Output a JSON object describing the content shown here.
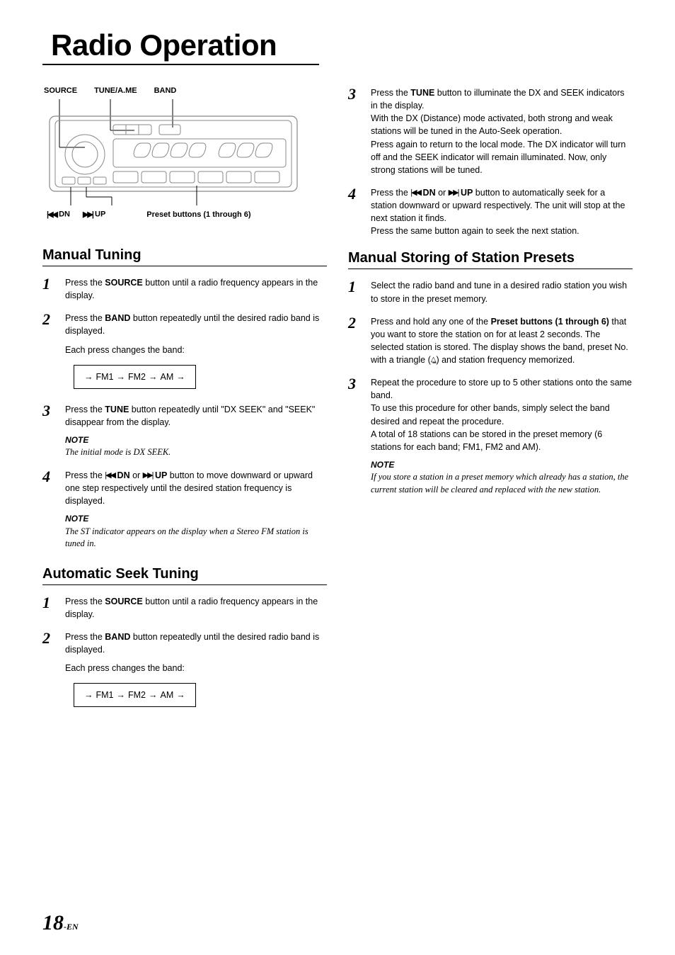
{
  "page_title": "Radio Operation",
  "diagram": {
    "top_labels": [
      "SOURCE",
      "TUNE/A.ME",
      "BAND"
    ],
    "bottom_dn_icon": "|◀◀",
    "bottom_dn": "DN",
    "bottom_up_icon": "▶▶|",
    "bottom_up": "UP",
    "bottom_preset": "Preset buttons (1 through 6)"
  },
  "sections": {
    "manual_tuning": {
      "heading": "Manual Tuning",
      "steps": [
        {
          "num": "1",
          "html": "Press the <b>SOURCE</b> button until a radio frequency appears in the display."
        },
        {
          "num": "2",
          "html": "Press the <b>BAND</b> button repeatedly until the desired radio band is displayed.",
          "extra": "Each press changes the band:",
          "cycle": true
        },
        {
          "num": "3",
          "html": "Press the <b>TUNE</b> button repeatedly until \"DX SEEK\" and \"SEEK\" disappear from the display.",
          "note_label": "NOTE",
          "note": "The initial mode is DX SEEK."
        },
        {
          "num": "4",
          "html": "Press the <span class='icon-inline'>|◀◀</span> <b>DN</b> or <span class='icon-inline'>▶▶|</span> <b>UP</b> button to move downward or upward one step respectively until the desired station frequency is displayed.",
          "note_label": "NOTE",
          "note": "The ST indicator appears on the display when a Stereo FM station is tuned in."
        }
      ]
    },
    "auto_seek": {
      "heading": "Automatic Seek Tuning",
      "steps": [
        {
          "num": "1",
          "html": "Press the <b>SOURCE</b> button until a radio frequency appears in the display."
        },
        {
          "num": "2",
          "html": "Press the <b>BAND</b> button repeatedly until the desired radio band is displayed.",
          "extra": "Each press changes the band:",
          "cycle": true
        }
      ]
    },
    "auto_seek_right": {
      "steps": [
        {
          "num": "3",
          "html": "Press the <b>TUNE</b> button to illuminate the DX and SEEK indicators in the display.<br>With the DX (Distance) mode activated, both strong and weak stations will be tuned in the Auto-Seek operation.<br>Press again to return to the local mode. The DX indicator will turn off and the SEEK indicator will remain illuminated. Now, only strong stations will be tuned."
        },
        {
          "num": "4",
          "html": "Press the <span class='icon-inline'>|◀◀</span> <b>DN</b> or <span class='icon-inline'>▶▶|</span> <b>UP</b> button to automatically seek for  a station downward or upward respectively. The unit will stop at the next station it finds.<br>Press the same button again to seek the next station."
        }
      ]
    },
    "manual_storing": {
      "heading": "Manual Storing of Station Presets",
      "steps": [
        {
          "num": "1",
          "html": "Select the radio band and tune in a desired radio station you wish to store in the preset memory."
        },
        {
          "num": "2",
          "html": "Press and hold any one of the <b>Preset buttons (1 through 6)</b> that you want to store the station on for at least 2 seconds. The selected station is stored. The display shows the band, preset No. with a triangle (<span class='preset-triangle'>△̲</span>) and station frequency memorized."
        },
        {
          "num": "3",
          "html": "Repeat the procedure to store up to 5 other stations onto the same band.<br>To use this procedure for other bands, simply select the band desired and repeat the procedure.<br>A total of 18 stations can be stored in the preset memory (6 stations for each band; FM1, FM2 and AM).",
          "note_label": "NOTE",
          "note": "If you store a station in a preset memory which already has a station, the current station will be cleared and replaced with the new station."
        }
      ]
    }
  },
  "band_cycle": {
    "items": [
      "FM1",
      "FM2",
      "AM"
    ],
    "arrow": "→"
  },
  "footer": {
    "page_num": "18",
    "suffix": "-EN"
  },
  "colors": {
    "text": "#000000",
    "bg": "#ffffff",
    "line": "#000000",
    "radio_stroke": "#777777"
  }
}
